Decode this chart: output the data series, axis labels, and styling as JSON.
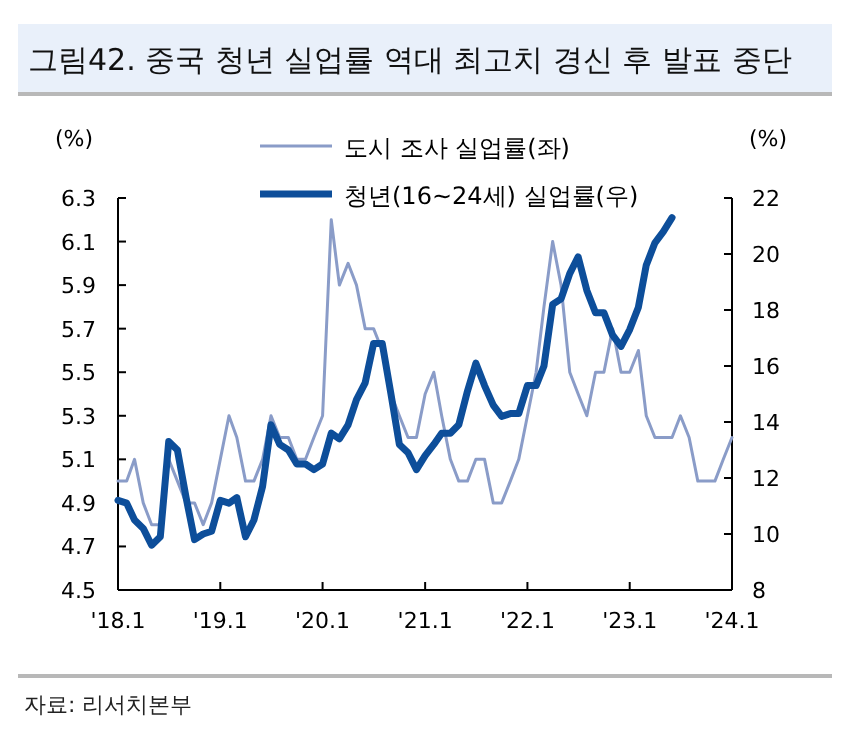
{
  "chart_data": {
    "type": "line",
    "title": "그림42. 중국 청년 실업률 역대 최고치 경신 후 발표 중단",
    "ylabel": "(%)",
    "y2label": "(%)",
    "x": [
      "2018-01",
      "2018-02",
      "2018-03",
      "2018-04",
      "2018-05",
      "2018-06",
      "2018-07",
      "2018-08",
      "2018-09",
      "2018-10",
      "2018-11",
      "2018-12",
      "2019-01",
      "2019-02",
      "2019-03",
      "2019-04",
      "2019-05",
      "2019-06",
      "2019-07",
      "2019-08",
      "2019-09",
      "2019-10",
      "2019-11",
      "2019-12",
      "2020-01",
      "2020-02",
      "2020-03",
      "2020-04",
      "2020-05",
      "2020-06",
      "2020-07",
      "2020-08",
      "2020-09",
      "2020-10",
      "2020-11",
      "2020-12",
      "2021-01",
      "2021-02",
      "2021-03",
      "2021-04",
      "2021-05",
      "2021-06",
      "2021-07",
      "2021-08",
      "2021-09",
      "2021-10",
      "2021-11",
      "2021-12",
      "2022-01",
      "2022-02",
      "2022-03",
      "2022-04",
      "2022-05",
      "2022-06",
      "2022-07",
      "2022-08",
      "2022-09",
      "2022-10",
      "2022-11",
      "2022-12",
      "2023-01",
      "2023-02",
      "2023-03",
      "2023-04",
      "2023-05",
      "2023-06",
      "2023-07",
      "2023-08",
      "2023-09",
      "2023-10",
      "2023-11",
      "2023-12",
      "2024-01"
    ],
    "series": [
      {
        "name": "도시 조사 실업률(좌)",
        "color": "#8a9cc8",
        "axis": "y",
        "line_style": "solid",
        "values": [
          5.0,
          5.0,
          5.1,
          4.9,
          4.8,
          4.8,
          5.1,
          5.0,
          4.9,
          4.9,
          4.8,
          4.9,
          5.1,
          5.3,
          5.2,
          5.0,
          5.0,
          5.1,
          5.3,
          5.2,
          5.2,
          5.1,
          5.1,
          5.2,
          5.3,
          6.2,
          5.9,
          6.0,
          5.9,
          5.7,
          5.7,
          5.6,
          5.4,
          5.3,
          5.2,
          5.2,
          5.4,
          5.5,
          5.3,
          5.1,
          5.0,
          5.0,
          5.1,
          5.1,
          4.9,
          4.9,
          5.0,
          5.1,
          5.3,
          5.5,
          5.8,
          6.1,
          5.9,
          5.5,
          5.4,
          5.3,
          5.5,
          5.5,
          5.7,
          5.5,
          5.5,
          5.6,
          5.3,
          5.2,
          5.2,
          5.2,
          5.3,
          5.2,
          5.0,
          5.0,
          5.0,
          5.1,
          5.2
        ]
      },
      {
        "name": "청년(16~24세) 실업률(우)",
        "color": "#0d4e9a",
        "axis": "y2",
        "line_style": "solid",
        "values": [
          11.2,
          11.1,
          10.5,
          10.2,
          9.6,
          9.9,
          13.3,
          13.0,
          11.3,
          9.8,
          10.0,
          10.1,
          11.2,
          11.1,
          11.3,
          9.9,
          10.5,
          11.7,
          13.9,
          13.2,
          13.0,
          12.5,
          12.5,
          12.3,
          12.5,
          13.6,
          13.4,
          13.9,
          14.8,
          15.4,
          16.8,
          16.8,
          15.0,
          13.2,
          12.9,
          12.3,
          12.8,
          13.2,
          13.6,
          13.6,
          13.9,
          15.1,
          16.1,
          15.3,
          14.6,
          14.2,
          14.3,
          14.3,
          15.3,
          15.3,
          16.0,
          18.2,
          18.4,
          19.3,
          19.9,
          18.7,
          17.9,
          17.9,
          17.1,
          16.7,
          17.3,
          18.1,
          19.6,
          20.4,
          20.8,
          21.3,
          null,
          null,
          null,
          null,
          null,
          null,
          null
        ]
      }
    ],
    "xlim": [
      "2018-01",
      "2024-01"
    ],
    "xticks": [
      {
        "value": "2018-01",
        "label": "'18.1"
      },
      {
        "value": "2019-01",
        "label": "'19.1"
      },
      {
        "value": "2020-01",
        "label": "'20.1"
      },
      {
        "value": "2021-01",
        "label": "'21.1"
      },
      {
        "value": "2022-01",
        "label": "'22.1"
      },
      {
        "value": "2023-01",
        "label": "'23.1"
      },
      {
        "value": "2024-01",
        "label": "'24.1"
      }
    ],
    "ylim": [
      4.5,
      6.3
    ],
    "yticks": [
      4.5,
      4.7,
      4.9,
      5.1,
      5.3,
      5.5,
      5.7,
      5.9,
      6.1,
      6.3
    ],
    "y2lim": [
      8,
      22
    ],
    "y2ticks": [
      8,
      10,
      12,
      14,
      16,
      18,
      20,
      22
    ],
    "legend": "top",
    "grid": false,
    "marker": "none",
    "annotations": [
      "자료: 리서치본부"
    ]
  }
}
